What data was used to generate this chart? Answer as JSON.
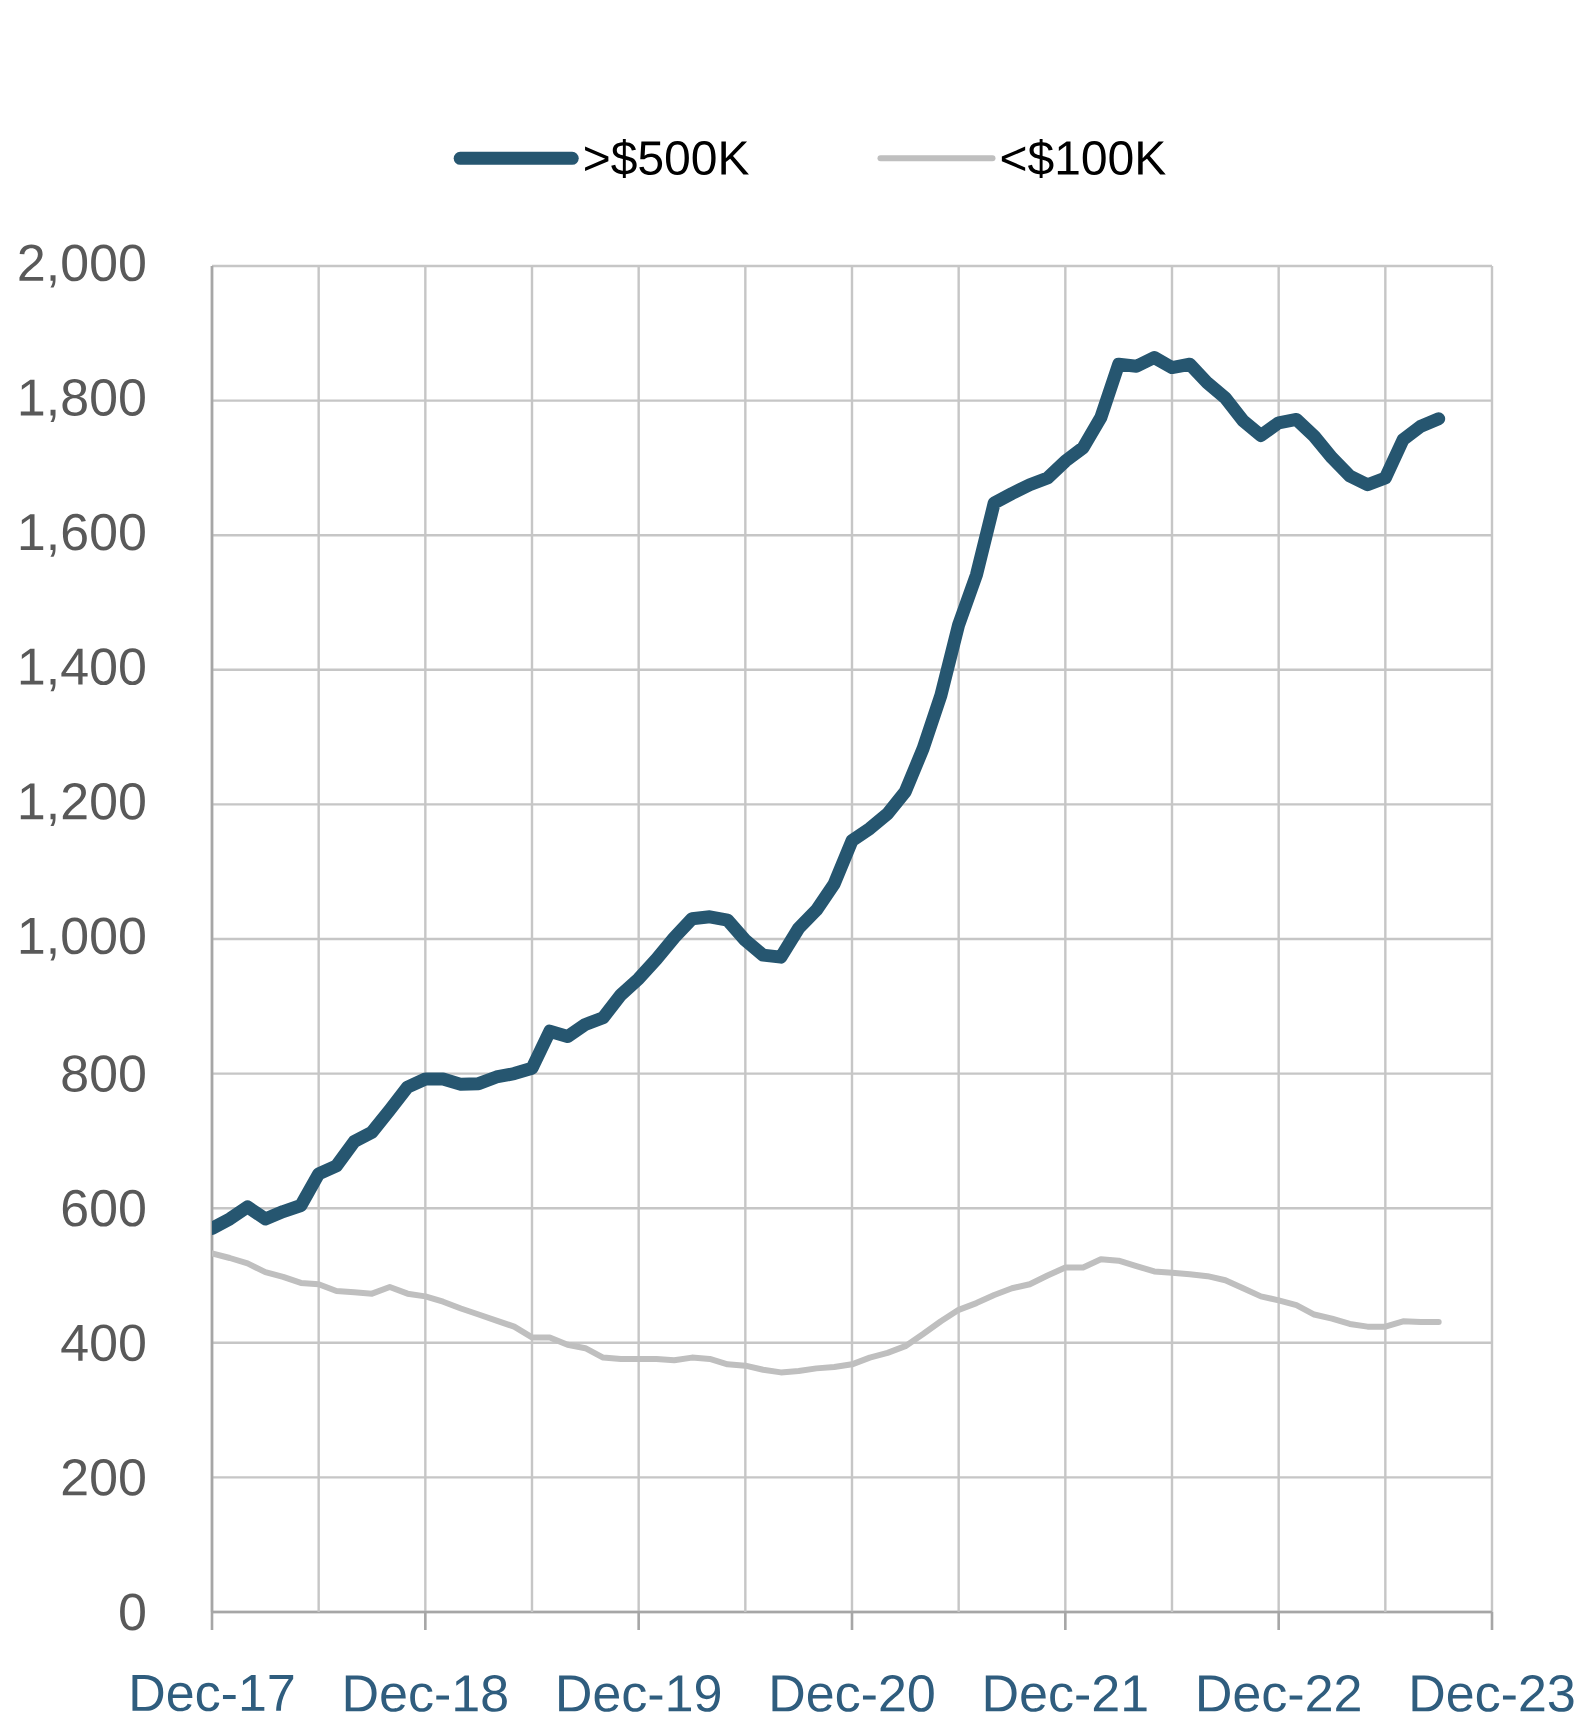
{
  "chart_data": {
    "type": "line",
    "x": [
      "2017-12",
      "2018-01",
      "2018-02",
      "2018-03",
      "2018-04",
      "2018-05",
      "2018-06",
      "2018-07",
      "2018-08",
      "2018-09",
      "2018-10",
      "2018-11",
      "2018-12",
      "2019-01",
      "2019-02",
      "2019-03",
      "2019-04",
      "2019-05",
      "2019-06",
      "2019-07",
      "2019-08",
      "2019-09",
      "2019-10",
      "2019-11",
      "2019-12",
      "2020-01",
      "2020-02",
      "2020-03",
      "2020-04",
      "2020-05",
      "2020-06",
      "2020-07",
      "2020-08",
      "2020-09",
      "2020-10",
      "2020-11",
      "2020-12",
      "2021-01",
      "2021-02",
      "2021-03",
      "2021-04",
      "2021-05",
      "2021-06",
      "2021-07",
      "2021-08",
      "2021-09",
      "2021-10",
      "2021-11",
      "2021-12",
      "2022-01",
      "2022-02",
      "2022-03",
      "2022-04",
      "2022-05",
      "2022-06",
      "2022-07",
      "2022-08",
      "2022-09",
      "2022-10",
      "2022-11",
      "2022-12",
      "2023-01",
      "2023-02",
      "2023-03",
      "2023-04",
      "2023-05",
      "2023-06",
      "2023-07",
      "2023-08",
      "2023-09"
    ],
    "series": [
      {
        "name": ">$500K",
        "color": "#265670",
        "values": [
          570,
          584,
          602,
          584,
          595,
          604,
          651,
          663,
          699,
          713,
          746,
          780,
          792,
          792,
          784,
          785,
          795,
          800,
          808,
          863,
          855,
          873,
          883,
          917,
          941,
          970,
          1002,
          1030,
          1033,
          1028,
          998,
          976,
          973,
          1016,
          1043,
          1082,
          1146,
          1164,
          1186,
          1219,
          1283,
          1362,
          1467,
          1541,
          1648,
          1662,
          1675,
          1685,
          1710,
          1730,
          1775,
          1854,
          1851,
          1864,
          1849,
          1854,
          1826,
          1804,
          1770,
          1748,
          1767,
          1772,
          1747,
          1715,
          1688,
          1675,
          1685,
          1742,
          1762,
          1773
        ]
      },
      {
        "name": "<$100K",
        "color": "#BFBFBF",
        "values": [
          533,
          526,
          518,
          505,
          498,
          489,
          487,
          477,
          475,
          473,
          483,
          473,
          469,
          461,
          451,
          442,
          433,
          424,
          408,
          408,
          397,
          392,
          378,
          376,
          376,
          376,
          374,
          378,
          376,
          368,
          366,
          360,
          356,
          358,
          362,
          364,
          368,
          378,
          385,
          395,
          413,
          432,
          449,
          459,
          471,
          481,
          487,
          500,
          512,
          512,
          524,
          522,
          514,
          506,
          504,
          502,
          499,
          493,
          481,
          469,
          463,
          456,
          442,
          436,
          428,
          424,
          424,
          432,
          431,
          431
        ]
      }
    ],
    "xlim": [
      "2017-12",
      "2023-12"
    ],
    "xticks": [
      {
        "value": "2017-12",
        "label": "Dec-17"
      },
      {
        "value": "2018-06",
        "label": null
      },
      {
        "value": "2018-12",
        "label": "Dec-18"
      },
      {
        "value": "2019-06",
        "label": null
      },
      {
        "value": "2019-12",
        "label": "Dec-19"
      },
      {
        "value": "2020-06",
        "label": null
      },
      {
        "value": "2020-12",
        "label": "Dec-20"
      },
      {
        "value": "2021-06",
        "label": null
      },
      {
        "value": "2021-12",
        "label": "Dec-21"
      },
      {
        "value": "2022-06",
        "label": null
      },
      {
        "value": "2022-12",
        "label": "Dec-22"
      },
      {
        "value": "2023-06",
        "label": null
      },
      {
        "value": "2023-12",
        "label": "Dec-23"
      }
    ],
    "ylim": [
      0,
      2000
    ],
    "yticks": [
      0,
      200,
      400,
      600,
      800,
      {
        "value": 1000,
        "label": "1,000"
      },
      {
        "value": 1200,
        "label": "1,200"
      },
      {
        "value": 1400,
        "label": "1,400"
      },
      {
        "value": 1600,
        "label": "1,600"
      },
      {
        "value": 1800,
        "label": "1,800"
      },
      {
        "value": 2000,
        "label": "2,000"
      }
    ],
    "grid": true,
    "legend": "top",
    "line_style": "solid"
  }
}
